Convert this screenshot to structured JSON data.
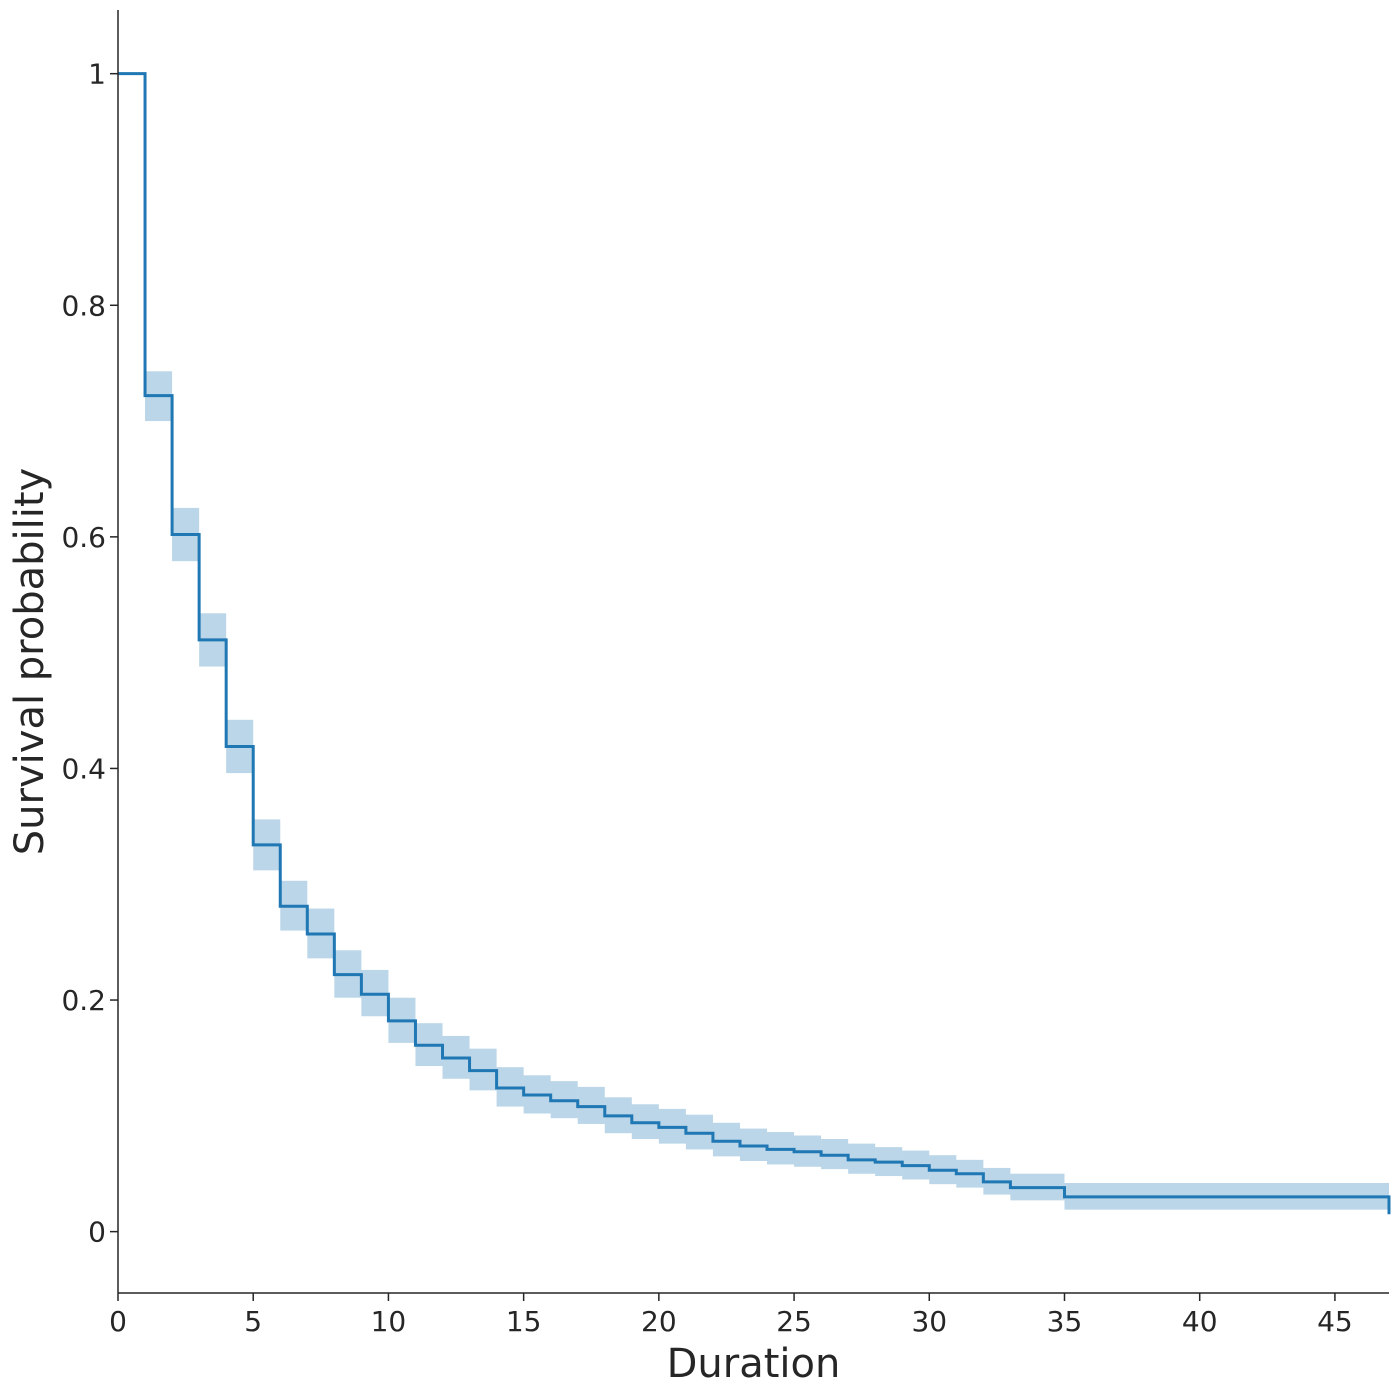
{
  "chart_data": {
    "type": "line",
    "subtype": "step",
    "title": "",
    "xlabel": "Duration",
    "ylabel": "Survival probability",
    "xlim": [
      0,
      47
    ],
    "ylim": [
      -0.053,
      1.055
    ],
    "grid": false,
    "legend": "none",
    "x_ticks": [
      0,
      5,
      10,
      15,
      20,
      25,
      30,
      35,
      40,
      45
    ],
    "y_ticks": [
      0,
      0.2,
      0.4,
      0.6,
      0.8,
      1
    ],
    "x_tick_labels": [
      "0",
      "5",
      "10",
      "15",
      "20",
      "25",
      "30",
      "35",
      "40",
      "45"
    ],
    "y_tick_labels": [
      "0",
      "0.2",
      "0.4",
      "0.6",
      "0.8",
      "1"
    ],
    "colors": {
      "line": "#1f77b4",
      "band": "#1f77b4",
      "axis": "#262626"
    },
    "series": [
      {
        "step": "post",
        "x": [
          0,
          1,
          2,
          3,
          4,
          5,
          6,
          7,
          8,
          9,
          10,
          11,
          12,
          13,
          14,
          15,
          16,
          17,
          18,
          19,
          20,
          21,
          22,
          23,
          24,
          25,
          26,
          27,
          28,
          29,
          30,
          31,
          32,
          33,
          35,
          47
        ],
        "y": [
          1.0,
          0.722,
          0.602,
          0.511,
          0.419,
          0.334,
          0.281,
          0.257,
          0.222,
          0.205,
          0.182,
          0.161,
          0.15,
          0.139,
          0.124,
          0.118,
          0.113,
          0.108,
          0.1,
          0.094,
          0.09,
          0.085,
          0.078,
          0.074,
          0.071,
          0.069,
          0.066,
          0.062,
          0.06,
          0.057,
          0.053,
          0.05,
          0.043,
          0.038,
          0.03,
          0.015
        ],
        "ci_lower": [
          1.0,
          0.7,
          0.579,
          0.488,
          0.396,
          0.312,
          0.26,
          0.236,
          0.202,
          0.186,
          0.163,
          0.143,
          0.132,
          0.122,
          0.108,
          0.102,
          0.098,
          0.093,
          0.085,
          0.08,
          0.076,
          0.071,
          0.065,
          0.061,
          0.058,
          0.056,
          0.054,
          0.05,
          0.048,
          0.045,
          0.041,
          0.038,
          0.032,
          0.027,
          0.019,
          0.015
        ],
        "ci_upper": [
          1.0,
          0.743,
          0.625,
          0.534,
          0.442,
          0.356,
          0.303,
          0.279,
          0.243,
          0.226,
          0.202,
          0.18,
          0.169,
          0.158,
          0.142,
          0.135,
          0.13,
          0.125,
          0.116,
          0.11,
          0.106,
          0.101,
          0.094,
          0.089,
          0.086,
          0.083,
          0.08,
          0.076,
          0.073,
          0.07,
          0.066,
          0.062,
          0.055,
          0.05,
          0.042,
          0.015
        ]
      }
    ]
  }
}
